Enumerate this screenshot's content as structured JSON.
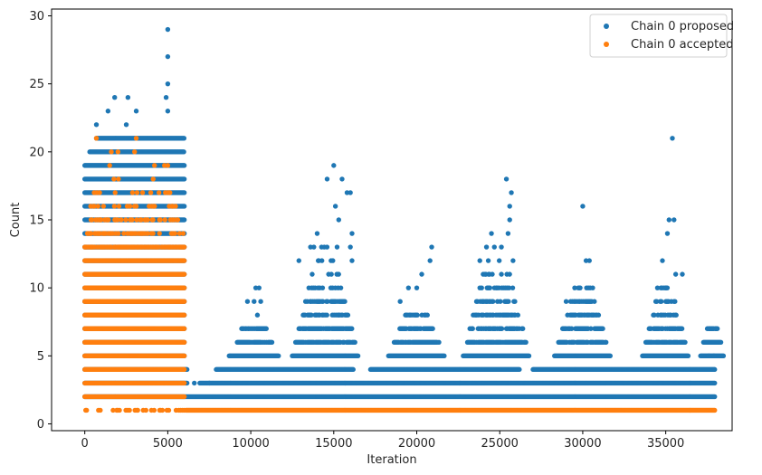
{
  "chart_data": {
    "type": "scatter",
    "title": "",
    "xlabel": "Iteration",
    "ylabel": "Count",
    "xlim": [
      -2000,
      39000
    ],
    "ylim": [
      -0.5,
      30.5
    ],
    "grid": false,
    "legend_position": "top-right",
    "x_ticks": [
      0,
      5000,
      10000,
      15000,
      20000,
      25000,
      30000,
      35000
    ],
    "y_ticks": [
      0,
      5,
      10,
      15,
      20,
      25,
      30
    ],
    "x_tick_labels": [
      "0",
      "5000",
      "10000",
      "15000",
      "20000",
      "25000",
      "30000",
      "35000"
    ],
    "y_tick_labels": [
      "0",
      "5",
      "10",
      "15",
      "20",
      "25",
      "30"
    ],
    "series": [
      {
        "name": "Chain 0 proposed",
        "color": "#1f77b4",
        "bands": [
          {
            "y": 2,
            "x_start": 0,
            "x_end": 38000
          },
          {
            "y": 3,
            "x_start": 0,
            "x_end": 38000,
            "gaps": [
              [
                6200,
                6900
              ]
            ]
          },
          {
            "y": 4,
            "x_start": 0,
            "x_end": 38000,
            "gaps": [
              [
                6200,
                7900
              ],
              [
                16200,
                17200
              ],
              [
                26200,
                27000
              ]
            ]
          },
          {
            "y": 5,
            "x_start": 0,
            "x_end": 6000
          },
          {
            "y": 6,
            "x_start": 0,
            "x_end": 6000
          },
          {
            "y": 7,
            "x_start": 0,
            "x_end": 6000
          },
          {
            "y": 8,
            "x_start": 0,
            "x_end": 6000
          },
          {
            "y": 9,
            "x_start": 0,
            "x_end": 6000
          },
          {
            "y": 10,
            "x_start": 0,
            "x_end": 6000
          },
          {
            "y": 11,
            "x_start": 0,
            "x_end": 6000
          },
          {
            "y": 12,
            "x_start": 0,
            "x_end": 6000
          },
          {
            "y": 13,
            "x_start": 0,
            "x_end": 6000
          },
          {
            "y": 14,
            "x_start": 0,
            "x_end": 6000
          },
          {
            "y": 15,
            "x_start": 0,
            "x_end": 6000
          },
          {
            "y": 16,
            "x_start": 0,
            "x_end": 6000
          },
          {
            "y": 17,
            "x_start": 0,
            "x_end": 6000
          },
          {
            "y": 18,
            "x_start": 0,
            "x_end": 6000
          },
          {
            "y": 19,
            "x_start": 0,
            "x_end": 6000
          },
          {
            "y": 20,
            "x_start": 300,
            "x_end": 6000
          },
          {
            "y": 21,
            "x_start": 700,
            "x_end": 6000
          }
        ],
        "clusters": [
          {
            "center": 14500,
            "spread": 2000,
            "max": 13
          },
          {
            "center": 24800,
            "spread": 2000,
            "max": 13
          },
          {
            "center": 30000,
            "spread": 1700,
            "max": 10
          },
          {
            "center": 35000,
            "spread": 1400,
            "max": 10
          },
          {
            "center": 20000,
            "spread": 1700,
            "max": 8
          },
          {
            "center": 10200,
            "spread": 1500,
            "max": 7
          },
          {
            "center": 37800,
            "spread": 700,
            "max": 7
          }
        ],
        "points": [
          [
            5000,
            29
          ],
          [
            5000,
            27
          ],
          [
            5000,
            25
          ],
          [
            4900,
            24
          ],
          [
            1800,
            24
          ],
          [
            2600,
            24
          ],
          [
            1400,
            23
          ],
          [
            3100,
            23
          ],
          [
            5000,
            23
          ],
          [
            700,
            22
          ],
          [
            2500,
            22
          ],
          [
            15000,
            19
          ],
          [
            15500,
            18
          ],
          [
            14600,
            18
          ],
          [
            15800,
            17
          ],
          [
            16000,
            17
          ],
          [
            15100,
            16
          ],
          [
            15300,
            15
          ],
          [
            14000,
            14
          ],
          [
            16100,
            14
          ],
          [
            13800,
            13
          ],
          [
            15200,
            13
          ],
          [
            25400,
            18
          ],
          [
            25700,
            17
          ],
          [
            25600,
            16
          ],
          [
            25600,
            15
          ],
          [
            25500,
            14
          ],
          [
            24500,
            14
          ],
          [
            24200,
            13
          ],
          [
            25100,
            13
          ],
          [
            23800,
            12
          ],
          [
            25800,
            12
          ],
          [
            20900,
            13
          ],
          [
            20800,
            12
          ],
          [
            20300,
            11
          ],
          [
            20000,
            10
          ],
          [
            19500,
            10
          ],
          [
            19000,
            9
          ],
          [
            30000,
            16
          ],
          [
            30200,
            12
          ],
          [
            30400,
            12
          ],
          [
            29800,
            10
          ],
          [
            30600,
            10
          ],
          [
            29000,
            9
          ],
          [
            35400,
            21
          ],
          [
            35200,
            15
          ],
          [
            35500,
            15
          ],
          [
            35100,
            14
          ],
          [
            34800,
            12
          ],
          [
            35600,
            11
          ],
          [
            36000,
            11
          ],
          [
            34500,
            10
          ],
          [
            35000,
            10
          ],
          [
            10500,
            10
          ],
          [
            10300,
            10
          ],
          [
            10200,
            9
          ],
          [
            9800,
            9
          ],
          [
            10600,
            9
          ],
          [
            10400,
            8
          ],
          [
            12900,
            12
          ],
          [
            13600,
            13
          ],
          [
            14100,
            12
          ],
          [
            16000,
            13
          ],
          [
            16100,
            12
          ],
          [
            37600,
            7
          ],
          [
            38000,
            7
          ],
          [
            37600,
            5
          ],
          [
            37900,
            5
          ],
          [
            7500,
            3
          ],
          [
            6600,
            3
          ]
        ]
      },
      {
        "name": "Chain 0 accepted",
        "color": "#ff7f0e",
        "bands": [
          {
            "y": 1,
            "x_start": 0,
            "x_end": 38000,
            "sparse_until": 6200
          },
          {
            "y": 2,
            "x_start": 0,
            "x_end": 6000
          },
          {
            "y": 3,
            "x_start": 0,
            "x_end": 6000
          },
          {
            "y": 4,
            "x_start": 0,
            "x_end": 6000
          },
          {
            "y": 5,
            "x_start": 0,
            "x_end": 6000
          },
          {
            "y": 6,
            "x_start": 0,
            "x_end": 6000
          },
          {
            "y": 7,
            "x_start": 0,
            "x_end": 6000
          },
          {
            "y": 8,
            "x_start": 0,
            "x_end": 6000
          },
          {
            "y": 9,
            "x_start": 0,
            "x_end": 6000
          },
          {
            "y": 10,
            "x_start": 0,
            "x_end": 6000
          },
          {
            "y": 11,
            "x_start": 0,
            "x_end": 6000
          },
          {
            "y": 12,
            "x_start": 0,
            "x_end": 6000
          },
          {
            "y": 13,
            "x_start": 0,
            "x_end": 6000,
            "density": 0.7
          },
          {
            "y": 14,
            "x_start": 100,
            "x_end": 6000,
            "density": 0.45
          },
          {
            "y": 15,
            "x_start": 100,
            "x_end": 5800,
            "density": 0.35
          },
          {
            "y": 16,
            "x_start": 300,
            "x_end": 5500,
            "density": 0.15
          },
          {
            "y": 17,
            "x_start": 400,
            "x_end": 5200,
            "density": 0.12
          },
          {
            "y": 18,
            "x_start": 600,
            "x_end": 4200,
            "density": 0.06
          }
        ],
        "points": [
          [
            700,
            21
          ],
          [
            1600,
            20
          ],
          [
            3100,
            21
          ],
          [
            2000,
            20
          ],
          [
            3000,
            20
          ],
          [
            1500,
            19
          ],
          [
            4200,
            19
          ],
          [
            4800,
            19
          ],
          [
            5000,
            19
          ]
        ]
      }
    ]
  }
}
